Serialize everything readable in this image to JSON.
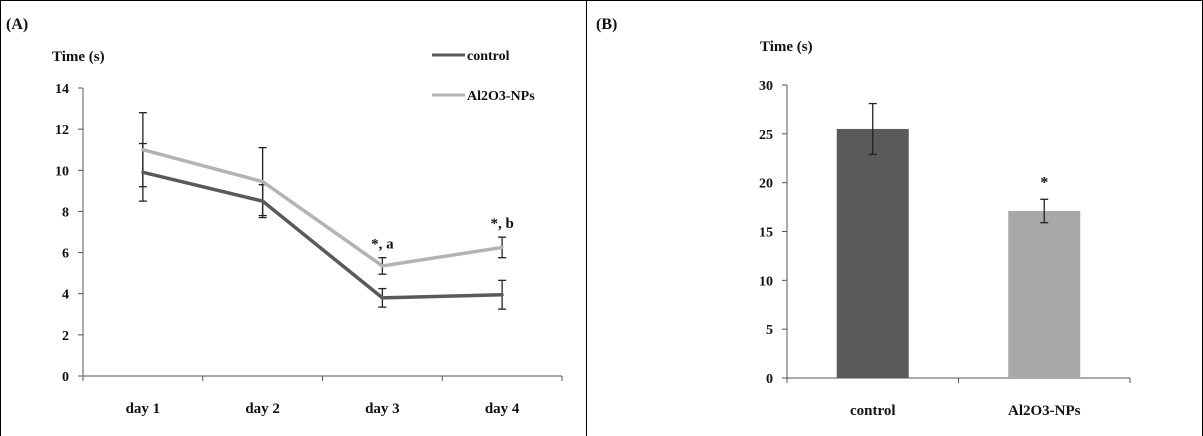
{
  "figure": {
    "panel_a_label": "(A)",
    "panel_b_label": "(B)"
  },
  "chart_data": [
    {
      "type": "line",
      "panel": "(A)",
      "ylabel": "Time (s)",
      "xlabel": "",
      "categories": [
        "day 1",
        "day 2",
        "day 3",
        "day 4"
      ],
      "ylim": [
        0,
        14
      ],
      "yticks": [
        0,
        2,
        4,
        6,
        8,
        10,
        12,
        14
      ],
      "grid": false,
      "legend_position": "top-right",
      "series": [
        {
          "name": "control",
          "color": "#5a5a5a",
          "values": [
            9.9,
            8.5,
            3.8,
            3.95
          ],
          "errors": [
            1.4,
            0.8,
            0.45,
            0.7
          ]
        },
        {
          "name": "Al2O3-NPs",
          "color": "#b3b3b3",
          "values": [
            11.0,
            9.45,
            5.35,
            6.25
          ],
          "errors": [
            1.8,
            1.65,
            0.4,
            0.5
          ]
        }
      ],
      "annotations": [
        {
          "category": "day 3",
          "text": "*, a"
        },
        {
          "category": "day 4",
          "text": "*, b"
        }
      ]
    },
    {
      "type": "bar",
      "panel": "(B)",
      "ylabel": "Time (s)",
      "xlabel": "",
      "categories": [
        "control",
        "Al2O3-NPs"
      ],
      "values": [
        25.5,
        17.1
      ],
      "errors": [
        2.6,
        1.2
      ],
      "colors": [
        "#5a5a5a",
        "#a8a8a8"
      ],
      "ylim": [
        0,
        30
      ],
      "yticks": [
        0,
        5,
        10,
        15,
        20,
        25,
        30
      ],
      "grid": false,
      "annotations": [
        {
          "category": "Al2O3-NPs",
          "text": "*"
        }
      ]
    }
  ]
}
